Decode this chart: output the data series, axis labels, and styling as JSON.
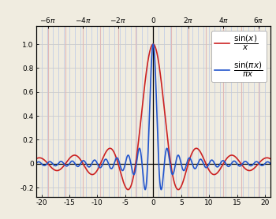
{
  "x_min": -21,
  "x_max": 21,
  "y_min": -0.28,
  "y_max": 1.15,
  "bottom_xticks": [
    -20,
    -15,
    -10,
    -5,
    0,
    5,
    10,
    15,
    20
  ],
  "top_xticks_pi": [
    -6,
    -4,
    -2,
    0,
    2,
    4,
    6
  ],
  "top_xtick_labels": [
    "$-6\\pi$",
    "$-4\\pi$",
    "$-2\\pi$",
    "$0$",
    "$2\\pi$",
    "$4\\pi$",
    "$6\\pi$"
  ],
  "yticks": [
    -0.2,
    0.0,
    0.2,
    0.4,
    0.6,
    0.8,
    1.0
  ],
  "sinc_unnorm_color": "#cc2222",
  "sinc_norm_color": "#2255cc",
  "grid_color_pi": "#e0b8b8",
  "grid_color_int": "#b8c8e8",
  "grid_hline_color": "#cccccc",
  "background_color": "#f0ece0",
  "line_width": 1.2,
  "legend_label_unnorm": "$\\dfrac{\\sin(x)}{x}$",
  "legend_label_norm": "$\\dfrac{\\sin(\\pi x)}{\\pi x}$",
  "num_points": 8000
}
